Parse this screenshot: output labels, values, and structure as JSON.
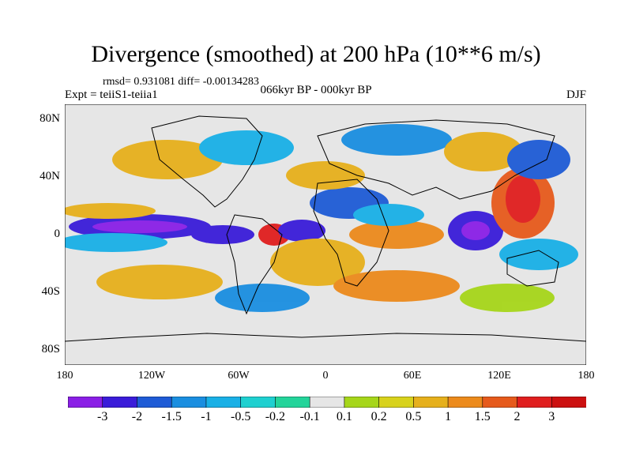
{
  "figure": {
    "title": "Divergence (smoothed) at 200 hPa (10**6 m/s)",
    "stats": "rmsd= 0.931081 diff= -0.00134283",
    "experiment": "Expt = teiiS1-teiia1",
    "period": "066kyr BP - 000kyr BP",
    "season": "DJF"
  },
  "axes": {
    "x_ticks": [
      "180",
      "120W",
      "60W",
      "0",
      "60E",
      "120E",
      "180"
    ],
    "y_ticks": [
      "80N",
      "40N",
      "0",
      "40S",
      "80S"
    ]
  },
  "colorbar": {
    "labels": [
      "-3",
      "-2",
      "-1.5",
      "-1",
      "-0.5",
      "-0.2",
      "-0.1",
      "0.1",
      "0.2",
      "0.5",
      "1",
      "1.5",
      "2",
      "3"
    ],
    "colors": [
      "#8a1fe6",
      "#3a1cd9",
      "#1e5bd6",
      "#1a8ee0",
      "#19b0e6",
      "#1ed0d0",
      "#23d49a",
      "#e6e6e6",
      "#a6d61a",
      "#d8d21c",
      "#e6b01c",
      "#ec8a1c",
      "#e65a1c",
      "#e01e1e",
      "#cc1010"
    ]
  },
  "palette": {
    "land_outline": "#000000",
    "neutral": "#e6e6e6"
  }
}
